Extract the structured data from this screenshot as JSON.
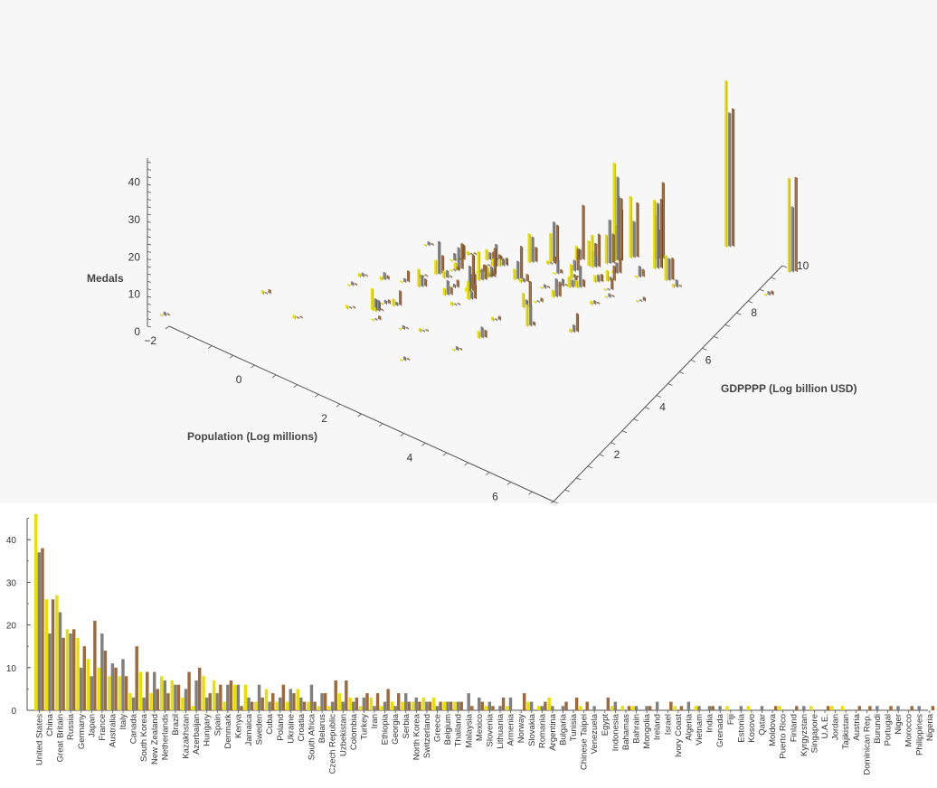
{
  "chart_data": [
    {
      "type": "bar3d",
      "title": "",
      "axes": {
        "x": {
          "label": "Population (Log millions)",
          "range": [
            -2,
            7
          ],
          "ticks": [
            "-2",
            "0",
            "2",
            "4",
            "6"
          ]
        },
        "y": {
          "label": "GDPPPP (Log billion USD)",
          "range": [
            0,
            10
          ],
          "ticks": [
            "2",
            "4",
            "6",
            "8",
            "10"
          ]
        },
        "z": {
          "label": "Medals",
          "range": [
            0,
            45
          ],
          "ticks": [
            "0",
            "10",
            "20",
            "30",
            "40"
          ]
        }
      },
      "series_colors": [
        "#e8e000",
        "#808080",
        "#9c6a3c"
      ],
      "countries": [
        {
          "name": "United States",
          "pop": 5.78,
          "gdp": 9.8,
          "medals": [
            46,
            37,
            38
          ]
        },
        {
          "name": "China",
          "pop": 7.2,
          "gdp": 9.9,
          "medals": [
            26,
            18,
            26
          ]
        },
        {
          "name": "Great Britain",
          "pop": 4.18,
          "gdp": 7.9,
          "medals": [
            27,
            23,
            17
          ]
        },
        {
          "name": "Russia",
          "pop": 4.96,
          "gdp": 8.2,
          "medals": [
            19,
            18,
            19
          ]
        },
        {
          "name": "Germany",
          "pop": 4.4,
          "gdp": 8.2,
          "medals": [
            17,
            10,
            15
          ]
        },
        {
          "name": "Japan",
          "pop": 4.84,
          "gdp": 8.5,
          "medals": [
            12,
            8,
            21
          ]
        },
        {
          "name": "France",
          "pop": 4.19,
          "gdp": 7.9,
          "medals": [
            10,
            18,
            14
          ]
        },
        {
          "name": "Australia",
          "pop": 3.17,
          "gdp": 7.0,
          "medals": [
            8,
            11,
            10
          ]
        },
        {
          "name": "Italy",
          "pop": 4.1,
          "gdp": 7.7,
          "medals": [
            8,
            12,
            8
          ]
        },
        {
          "name": "Canada",
          "pop": 3.56,
          "gdp": 7.4,
          "medals": [
            4,
            3,
            15
          ]
        },
        {
          "name": "South Korea",
          "pop": 3.93,
          "gdp": 7.4,
          "medals": [
            9,
            3,
            9
          ]
        },
        {
          "name": "New Zealand",
          "pop": 1.5,
          "gdp": 5.1,
          "medals": [
            4,
            9,
            5
          ]
        },
        {
          "name": "Netherlands",
          "pop": 2.83,
          "gdp": 6.7,
          "medals": [
            8,
            7,
            4
          ]
        },
        {
          "name": "Brazil",
          "pop": 5.33,
          "gdp": 8.0,
          "medals": [
            7,
            6,
            6
          ]
        },
        {
          "name": "Kazakhstan",
          "pop": 2.86,
          "gdp": 6.0,
          "medals": [
            3,
            5,
            9
          ]
        },
        {
          "name": "Azerbaijan",
          "pop": 2.27,
          "gdp": 5.0,
          "medals": [
            1,
            7,
            10
          ]
        },
        {
          "name": "Hungary",
          "pop": 2.29,
          "gdp": 5.5,
          "medals": [
            8,
            3,
            4
          ]
        },
        {
          "name": "Spain",
          "pop": 3.85,
          "gdp": 7.4,
          "medals": [
            7,
            4,
            6
          ]
        },
        {
          "name": "Denmark",
          "pop": 1.74,
          "gdp": 5.5,
          "medals": [
            2,
            6,
            7
          ]
        },
        {
          "name": "Kenya",
          "pop": 3.8,
          "gdp": 4.8,
          "medals": [
            6,
            6,
            1
          ]
        },
        {
          "name": "Jamaica",
          "pop": 1.03,
          "gdp": 3.2,
          "medals": [
            6,
            3,
            2
          ]
        },
        {
          "name": "Sweden",
          "pop": 2.3,
          "gdp": 6.1,
          "medals": [
            2,
            6,
            3
          ]
        },
        {
          "name": "Cuba",
          "pop": 2.42,
          "gdp": 4.8,
          "medals": [
            5,
            2,
            4
          ]
        },
        {
          "name": "Poland",
          "pop": 3.65,
          "gdp": 7.0,
          "medals": [
            2,
            3,
            6
          ]
        },
        {
          "name": "Ukraine",
          "pop": 3.76,
          "gdp": 6.0,
          "medals": [
            2,
            5,
            4
          ]
        },
        {
          "name": "Croatia",
          "pop": 1.42,
          "gdp": 4.5,
          "medals": [
            5,
            3,
            2
          ]
        },
        {
          "name": "South Africa",
          "pop": 4.0,
          "gdp": 6.6,
          "medals": [
            2,
            6,
            2
          ]
        },
        {
          "name": "Belarus",
          "pop": 2.25,
          "gdp": 5.1,
          "medals": [
            1,
            4,
            4
          ]
        },
        {
          "name": "Czech Republic",
          "pop": 2.35,
          "gdp": 5.8,
          "medals": [
            1,
            2,
            7
          ]
        },
        {
          "name": "Uzbekistan",
          "pop": 3.44,
          "gdp": 5.3,
          "medals": [
            4,
            2,
            7
          ]
        },
        {
          "name": "Colombia",
          "pop": 3.87,
          "gdp": 6.5,
          "medals": [
            3,
            2,
            3
          ]
        },
        {
          "name": "Turkey",
          "pop": 4.37,
          "gdp": 7.5,
          "medals": [
            1,
            3,
            4
          ]
        },
        {
          "name": "Iran",
          "pop": 4.39,
          "gdp": 7.2,
          "medals": [
            3,
            1,
            4
          ]
        },
        {
          "name": "Ethiopia",
          "pop": 4.6,
          "gdp": 5.2,
          "medals": [
            1,
            2,
            5
          ]
        },
        {
          "name": "Georgia",
          "pop": 1.31,
          "gdp": 3.6,
          "medals": [
            2,
            1,
            4
          ]
        },
        {
          "name": "Serbia",
          "pop": 1.97,
          "gdp": 4.6,
          "medals": [
            2,
            4,
            2
          ]
        },
        {
          "name": "North Korea",
          "pop": 3.2,
          "gdp": 3.8,
          "medals": [
            2,
            3,
            2
          ]
        },
        {
          "name": "Switzerland",
          "pop": 2.1,
          "gdp": 6.2,
          "medals": [
            3,
            2,
            2
          ]
        },
        {
          "name": "Greece",
          "pop": 2.39,
          "gdp": 5.7,
          "medals": [
            3,
            1,
            2
          ]
        },
        {
          "name": "Belgium",
          "pop": 2.41,
          "gdp": 6.2,
          "medals": [
            2,
            2,
            2
          ]
        },
        {
          "name": "Thailand",
          "pop": 4.21,
          "gdp": 7.0,
          "medals": [
            2,
            2,
            2
          ]
        },
        {
          "name": "Malaysia",
          "pop": 3.42,
          "gdp": 6.7,
          "medals": [
            0,
            4,
            1
          ]
        },
        {
          "name": "Mexico",
          "pop": 4.8,
          "gdp": 7.7,
          "medals": [
            0,
            3,
            2
          ]
        },
        {
          "name": "Slovenia",
          "pop": 0.7,
          "gdp": 4.2,
          "medals": [
            1,
            2,
            1
          ]
        },
        {
          "name": "Lithuania",
          "pop": 1.07,
          "gdp": 4.4,
          "medals": [
            0,
            1,
            3
          ]
        },
        {
          "name": "Armenia",
          "pop": 1.1,
          "gdp": 3.2,
          "medals": [
            1,
            3,
            0
          ]
        },
        {
          "name": "Norway",
          "pop": 1.62,
          "gdp": 5.8,
          "medals": [
            0,
            0,
            4
          ]
        },
        {
          "name": "Slovakia",
          "pop": 1.69,
          "gdp": 5.1,
          "medals": [
            2,
            2,
            0
          ]
        },
        {
          "name": "Romania",
          "pop": 3.0,
          "gdp": 6.0,
          "medals": [
            1,
            1,
            2
          ]
        },
        {
          "name": "Argentina",
          "pop": 3.76,
          "gdp": 6.8,
          "medals": [
            3,
            1,
            0
          ]
        },
        {
          "name": "Bulgaria",
          "pop": 1.96,
          "gdp": 4.9,
          "medals": [
            0,
            1,
            2
          ]
        },
        {
          "name": "Tunisia",
          "pop": 2.42,
          "gdp": 4.8,
          "medals": [
            0,
            0,
            3
          ]
        },
        {
          "name": "Chinese Taipei",
          "pop": 3.16,
          "gdp": 6.9,
          "medals": [
            1,
            0,
            2
          ]
        },
        {
          "name": "Venezuela",
          "pop": 3.44,
          "gdp": 6.1,
          "medals": [
            0,
            1,
            0
          ]
        },
        {
          "name": "Egypt",
          "pop": 4.5,
          "gdp": 6.9,
          "medals": [
            0,
            0,
            3
          ]
        },
        {
          "name": "Indonesia",
          "pop": 5.56,
          "gdp": 7.9,
          "medals": [
            1,
            2,
            0
          ]
        },
        {
          "name": "Bahamas",
          "pop": -1.0,
          "gdp": 2.2,
          "medals": [
            1,
            0,
            1
          ]
        },
        {
          "name": "Bahrain",
          "pop": 0.3,
          "gdp": 4.0,
          "medals": [
            1,
            1,
            0
          ]
        },
        {
          "name": "Mongolia",
          "pop": 1.1,
          "gdp": 3.5,
          "medals": [
            0,
            1,
            1
          ]
        },
        {
          "name": "Ireland",
          "pop": 1.54,
          "gdp": 5.7,
          "medals": [
            0,
            2,
            0
          ]
        },
        {
          "name": "Israel",
          "pop": 2.15,
          "gdp": 5.7,
          "medals": [
            0,
            0,
            2
          ]
        },
        {
          "name": "Ivory Coast",
          "pop": 3.15,
          "gdp": 4.5,
          "medals": [
            1,
            0,
            1
          ]
        },
        {
          "name": "Algeria",
          "pop": 3.7,
          "gdp": 6.4,
          "medals": [
            0,
            2,
            0
          ]
        },
        {
          "name": "Vietnam",
          "pop": 4.5,
          "gdp": 6.3,
          "medals": [
            1,
            1,
            0
          ]
        },
        {
          "name": "India",
          "pop": 7.18,
          "gdp": 8.9,
          "medals": [
            0,
            1,
            1
          ]
        },
        {
          "name": "Grenada",
          "pop": -2.3,
          "gdp": 0.2,
          "medals": [
            0,
            1,
            0
          ]
        },
        {
          "name": "Fiji",
          "pop": -0.1,
          "gdp": 1.9,
          "medals": [
            1,
            0,
            0
          ]
        },
        {
          "name": "Estonia",
          "pop": 0.27,
          "gdp": 3.6,
          "medals": [
            0,
            1,
            0
          ]
        },
        {
          "name": "Kosovo",
          "pop": 0.6,
          "gdp": 2.9,
          "medals": [
            1,
            0,
            0
          ]
        },
        {
          "name": "Qatar",
          "pop": 0.88,
          "gdp": 5.8,
          "medals": [
            0,
            1,
            0
          ]
        },
        {
          "name": "Moldova",
          "pop": 1.2,
          "gdp": 2.9,
          "medals": [
            0,
            0,
            1
          ]
        },
        {
          "name": "Puerto Rico",
          "pop": 1.27,
          "gdp": 4.8,
          "medals": [
            1,
            0,
            0
          ]
        },
        {
          "name": "Finland",
          "pop": 1.7,
          "gdp": 5.4,
          "medals": [
            0,
            0,
            1
          ]
        },
        {
          "name": "Kyrgyzstan",
          "pop": 1.79,
          "gdp": 3.0,
          "medals": [
            0,
            1,
            0
          ]
        },
        {
          "name": "Singapore",
          "pop": 1.72,
          "gdp": 6.1,
          "medals": [
            1,
            0,
            0
          ]
        },
        {
          "name": "U.A.E.",
          "pop": 2.22,
          "gdp": 6.3,
          "medals": [
            0,
            0,
            1
          ]
        },
        {
          "name": "Jordan",
          "pop": 2.25,
          "gdp": 4.4,
          "medals": [
            1,
            0,
            0
          ]
        },
        {
          "name": "Tajikistan",
          "pop": 2.15,
          "gdp": 3.2,
          "medals": [
            1,
            0,
            0
          ]
        },
        {
          "name": "Austria",
          "pop": 2.18,
          "gdp": 6.0,
          "medals": [
            0,
            0,
            1
          ]
        },
        {
          "name": "Dominican Rep.",
          "pop": 2.3,
          "gdp": 5.0,
          "medals": [
            0,
            0,
            1
          ]
        },
        {
          "name": "Burundi",
          "pop": 2.3,
          "gdp": 2.1,
          "medals": [
            0,
            1,
            0
          ]
        },
        {
          "name": "Portugal",
          "pop": 2.33,
          "gdp": 5.7,
          "medals": [
            0,
            0,
            1
          ]
        },
        {
          "name": "Niger",
          "pop": 2.99,
          "gdp": 3.1,
          "medals": [
            0,
            1,
            0
          ]
        },
        {
          "name": "Morocco",
          "pop": 3.55,
          "gdp": 5.6,
          "medals": [
            0,
            0,
            1
          ]
        },
        {
          "name": "Philippines",
          "pop": 4.63,
          "gdp": 6.7,
          "medals": [
            0,
            1,
            0
          ]
        },
        {
          "name": "Nigeria",
          "pop": 5.2,
          "gdp": 7.0,
          "medals": [
            0,
            0,
            1
          ]
        }
      ]
    },
    {
      "type": "bar",
      "ylim": [
        0,
        45
      ],
      "yticks": [
        "0",
        "10",
        "20",
        "30",
        "40"
      ],
      "xlabel": "",
      "ylabel": "",
      "note": "Grouped bars per country; values from the 3D chart medals arrays, same order"
    }
  ]
}
